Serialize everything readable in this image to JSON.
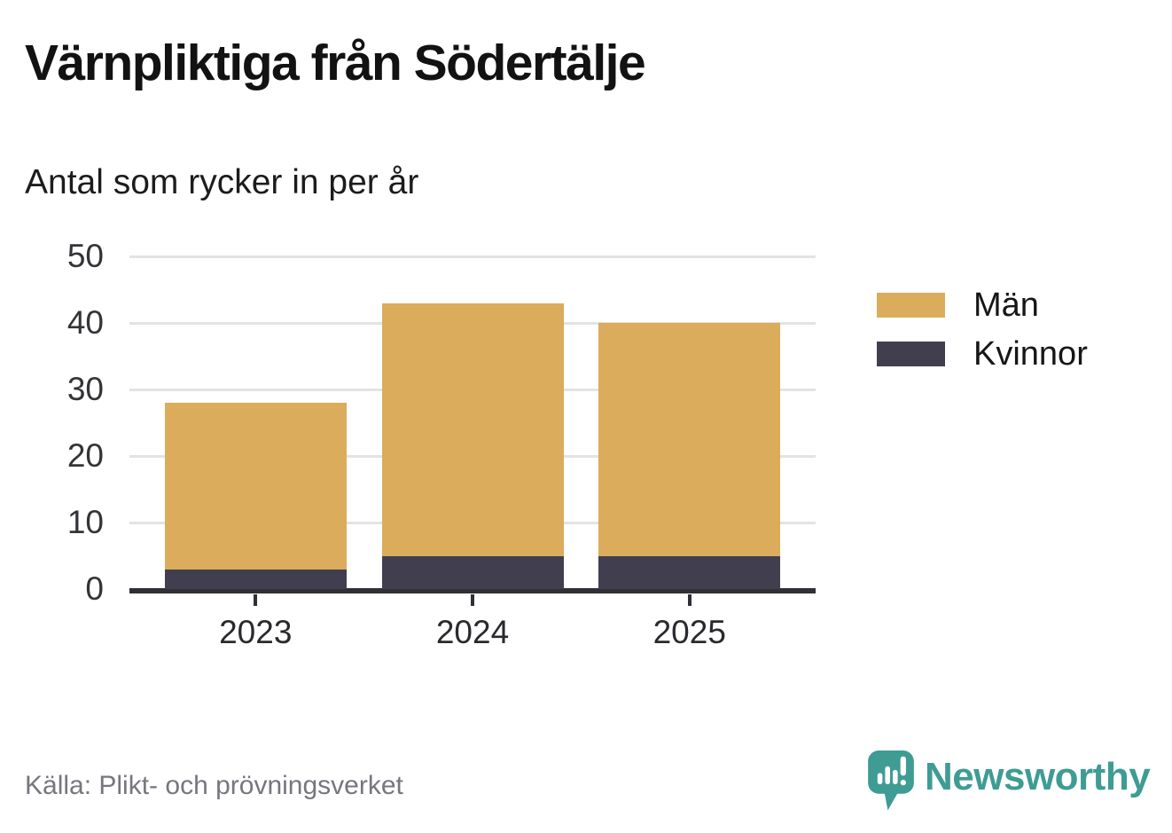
{
  "title": "Värnpliktiga från Södertälje",
  "subtitle": "Antal som rycker in per år",
  "source": "Källa: Plikt- och prövningsverket",
  "brand": {
    "name": "Newsworthy",
    "color": "#3E9C94",
    "icon": "speech-bubble-bar-chart-exclamation-icon"
  },
  "colors": {
    "men": "#DAAC5C",
    "women": "#413F4F",
    "gridline": "#E3E3E3",
    "axis": "#2F2F35",
    "tick_text": "#343438",
    "muted_text": "#76767E"
  },
  "chart_data": {
    "type": "bar",
    "stacked": true,
    "title": "Värnpliktiga från Södertälje",
    "subtitle": "Antal som rycker in per år",
    "categories": [
      "2023",
      "2024",
      "2025"
    ],
    "series": [
      {
        "name": "Män",
        "color": "#DAAC5C",
        "values": [
          25,
          38,
          35
        ]
      },
      {
        "name": "Kvinnor",
        "color": "#413F4F",
        "values": [
          3,
          5,
          5
        ]
      }
    ],
    "stack_order_bottom_to_top": [
      "Kvinnor",
      "Män"
    ],
    "stacked_totals": [
      28,
      43,
      40
    ],
    "xlabel": "",
    "ylabel": "",
    "ylim": [
      0,
      50
    ],
    "yticks": [
      0,
      10,
      20,
      30,
      40,
      50
    ],
    "grid": "horizontal",
    "legend_position": "right",
    "source": "Källa: Plikt- och prövningsverket"
  }
}
